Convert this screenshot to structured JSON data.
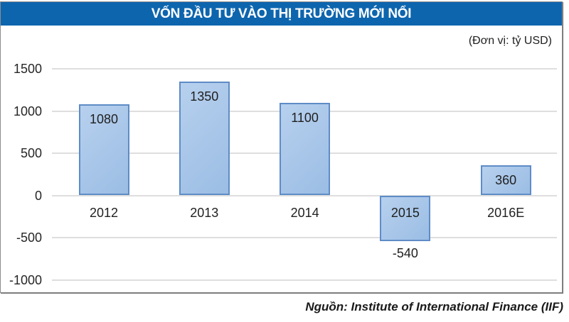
{
  "chart_data": {
    "type": "bar",
    "title": "VỐN ĐẦU TƯ VÀO THỊ TRƯỜNG MỚI NỔI",
    "unit_note": "(Đơn vị: tỷ USD)",
    "source": "Nguồn: Institute of International Finance (IIF)",
    "categories": [
      "2012",
      "2013",
      "2014",
      "2015",
      "2016E"
    ],
    "values": [
      1080,
      1350,
      1100,
      -540,
      360
    ],
    "y_ticks": [
      1500,
      1000,
      500,
      0,
      -500,
      -1000
    ],
    "ylim": [
      -1000,
      1500
    ],
    "grid": true,
    "legend": "none",
    "colors": {
      "title_bg": "#0d65ae",
      "title_text": "#ffffff",
      "bar_fill_light": "#b7d0ee",
      "bar_fill_dark": "#9bbde4",
      "bar_border": "#5e8cc6",
      "gridline": "#dedede",
      "text": "#262626",
      "frame_border": "#8c8c8c"
    }
  }
}
